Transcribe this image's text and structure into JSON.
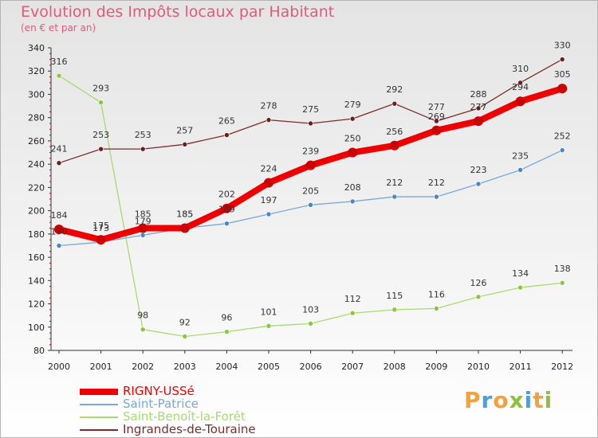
{
  "header": {
    "title": "Evolution des Impôts locaux par Habitant",
    "subtitle": "(en € et par an)"
  },
  "brand": {
    "letters": [
      {
        "ch": "P",
        "color": "#f2a23b"
      },
      {
        "ch": "r",
        "color": "#4f9fd6"
      },
      {
        "ch": "o",
        "color": "#f2a23b"
      },
      {
        "ch": "x",
        "color": "#8fc03b"
      },
      {
        "ch": "i",
        "color": "#4f9fd6"
      },
      {
        "ch": "t",
        "color": "#f2a23b"
      },
      {
        "ch": "i",
        "color": "#8fc03b"
      }
    ]
  },
  "chart_data": {
    "type": "line",
    "title": "Evolution des Impôts locaux par Habitant",
    "subtitle": "(en € et par an)",
    "x": [
      "2000",
      "2001",
      "2002",
      "2003",
      "2004",
      "2005",
      "2006",
      "2007",
      "2008",
      "2009",
      "2010",
      "2011",
      "2012"
    ],
    "ylim": [
      80,
      340
    ],
    "yticks": [
      80,
      100,
      120,
      140,
      160,
      180,
      200,
      220,
      240,
      260,
      280,
      300,
      320,
      340
    ],
    "grid": false,
    "legend_position": "bottom-left",
    "series": [
      {
        "name": "RIGNY-USSé",
        "color": "#ee0000",
        "marker_color": "#cc0000",
        "values": [
          184,
          175,
          185,
          185,
          202,
          224,
          239,
          250,
          256,
          269,
          277,
          294,
          305
        ],
        "labels": [
          "184",
          "175",
          "185",
          "185",
          "202",
          "224",
          "239",
          "250",
          "256",
          "269",
          "277",
          "294",
          "305"
        ]
      },
      {
        "name": "Saint-Patrice",
        "color": "#78a9d6",
        "marker_color": "#4a85c5",
        "values": [
          170,
          173,
          179,
          185,
          189,
          197,
          205,
          208,
          212,
          212,
          223,
          235,
          252
        ],
        "labels": [
          "170",
          "173",
          "179",
          "185",
          "189",
          "197",
          "205",
          "208",
          "212",
          "212",
          "223",
          "235",
          "252"
        ]
      },
      {
        "name": "Saint-Benoît-la-Forêt",
        "color": "#a8da70",
        "marker_color": "#8cc63f",
        "values": [
          316,
          293,
          98,
          92,
          96,
          101,
          103,
          112,
          115,
          116,
          126,
          134,
          138
        ],
        "labels": [
          "316",
          "293",
          "98",
          "92",
          "96",
          "101",
          "103",
          "112",
          "115",
          "116",
          "126",
          "134",
          "138"
        ]
      },
      {
        "name": "Ingrandes-de-Touraine",
        "color": "#7a2c2c",
        "marker_color": "#6b1e1e",
        "values": [
          241,
          253,
          253,
          257,
          265,
          278,
          275,
          279,
          292,
          277,
          288,
          310,
          330
        ],
        "labels": [
          "241",
          "253",
          "253",
          "257",
          "265",
          "278",
          "275",
          "279",
          "292",
          "277",
          "288",
          "310",
          "330"
        ]
      }
    ]
  }
}
